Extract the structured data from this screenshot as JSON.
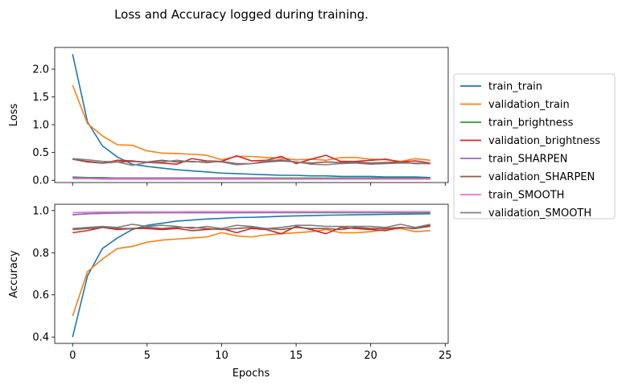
{
  "chart_data": {
    "type": "line",
    "title": "Loss and Accuracy logged during training.",
    "xlabel": "Epochs",
    "x": [
      0,
      1,
      2,
      3,
      4,
      5,
      6,
      7,
      8,
      9,
      10,
      11,
      12,
      13,
      14,
      15,
      16,
      17,
      18,
      19,
      20,
      21,
      22,
      23,
      24
    ],
    "xlim": [
      -1.2,
      25.2
    ],
    "xticks": [
      0,
      5,
      10,
      15,
      20,
      25
    ],
    "legend_position": "outside-right",
    "subplots": [
      {
        "id": "loss",
        "ylabel": "Loss",
        "ylim": [
          -0.04,
          2.39
        ],
        "yticks": [
          0.0,
          0.5,
          1.0,
          1.5,
          2.0
        ],
        "ytick_labels": [
          "0.0",
          "0.5",
          "1.0",
          "1.5",
          "2.0"
        ],
        "series": [
          {
            "name": "train_train",
            "color": "#1f77b4",
            "values": [
              2.27,
              1.05,
              0.62,
              0.42,
              0.29,
              0.25,
              0.22,
              0.19,
              0.17,
              0.15,
              0.13,
              0.12,
              0.11,
              0.1,
              0.09,
              0.09,
              0.08,
              0.08,
              0.07,
              0.07,
              0.07,
              0.06,
              0.06,
              0.06,
              0.05
            ]
          },
          {
            "name": "validation_train",
            "color": "#ff7f0e",
            "values": [
              1.71,
              1.02,
              0.8,
              0.64,
              0.63,
              0.53,
              0.49,
              0.48,
              0.47,
              0.45,
              0.37,
              0.43,
              0.43,
              0.41,
              0.4,
              0.37,
              0.38,
              0.36,
              0.41,
              0.41,
              0.38,
              0.37,
              0.34,
              0.39,
              0.36
            ]
          },
          {
            "name": "train_brightness",
            "color": "#2ca02c",
            "values": [
              0.06,
              0.05,
              0.05,
              0.04,
              0.04,
              0.04,
              0.04,
              0.04,
              0.04,
              0.04,
              0.04,
              0.04,
              0.04,
              0.04,
              0.04,
              0.04,
              0.04,
              0.04,
              0.04,
              0.04,
              0.04,
              0.04,
              0.04,
              0.04,
              0.04
            ]
          },
          {
            "name": "validation_brightness",
            "color": "#d62728",
            "values": [
              0.38,
              0.34,
              0.31,
              0.36,
              0.35,
              0.32,
              0.31,
              0.29,
              0.39,
              0.35,
              0.34,
              0.44,
              0.35,
              0.36,
              0.43,
              0.3,
              0.38,
              0.45,
              0.34,
              0.34,
              0.36,
              0.38,
              0.33,
              0.35,
              0.31
            ]
          },
          {
            "name": "train_SHARPEN",
            "color": "#9467bd",
            "values": [
              0.05,
              0.04,
              0.04,
              0.04,
              0.04,
              0.04,
              0.04,
              0.04,
              0.04,
              0.04,
              0.04,
              0.04,
              0.04,
              0.04,
              0.03,
              0.03,
              0.03,
              0.03,
              0.03,
              0.03,
              0.03,
              0.03,
              0.03,
              0.03,
              0.03
            ]
          },
          {
            "name": "validation_SHARPEN",
            "color": "#8c564b",
            "values": [
              0.38,
              0.33,
              0.31,
              0.33,
              0.34,
              0.33,
              0.36,
              0.33,
              0.34,
              0.32,
              0.34,
              0.3,
              0.3,
              0.33,
              0.35,
              0.33,
              0.31,
              0.33,
              0.32,
              0.33,
              0.31,
              0.32,
              0.33,
              0.3,
              0.3
            ]
          },
          {
            "name": "train_SMOOTH",
            "color": "#e377c2",
            "values": [
              0.03,
              0.03,
              0.02,
              0.02,
              0.02,
              0.02,
              0.02,
              0.02,
              0.02,
              0.02,
              0.02,
              0.02,
              0.02,
              0.02,
              0.02,
              0.02,
              0.02,
              0.02,
              0.02,
              0.02,
              0.02,
              0.02,
              0.02,
              0.02,
              0.02
            ]
          },
          {
            "name": "validation_SMOOTH",
            "color": "#7f7f7f",
            "values": [
              0.39,
              0.37,
              0.34,
              0.33,
              0.27,
              0.32,
              0.33,
              0.36,
              0.33,
              0.34,
              0.33,
              0.28,
              0.3,
              0.35,
              0.37,
              0.33,
              0.29,
              0.28,
              0.3,
              0.31,
              0.29,
              0.3,
              0.31,
              0.31,
              0.3
            ]
          }
        ]
      },
      {
        "id": "accuracy",
        "ylabel": "Accuracy",
        "ylim": [
          0.37,
          1.03
        ],
        "yticks": [
          0.4,
          0.6,
          0.8,
          1.0
        ],
        "ytick_labels": [
          "0.4",
          "0.6",
          "0.8",
          "1.0"
        ],
        "series": [
          {
            "name": "train_train",
            "color": "#1f77b4",
            "values": [
              0.4,
              0.69,
              0.82,
              0.87,
              0.91,
              0.93,
              0.94,
              0.95,
              0.955,
              0.96,
              0.963,
              0.967,
              0.968,
              0.97,
              0.973,
              0.975,
              0.976,
              0.978,
              0.979,
              0.98,
              0.981,
              0.982,
              0.983,
              0.984,
              0.985
            ]
          },
          {
            "name": "validation_train",
            "color": "#ff7f0e",
            "values": [
              0.5,
              0.71,
              0.77,
              0.82,
              0.83,
              0.85,
              0.86,
              0.865,
              0.87,
              0.875,
              0.895,
              0.88,
              0.875,
              0.885,
              0.89,
              0.895,
              0.9,
              0.91,
              0.895,
              0.895,
              0.9,
              0.91,
              0.915,
              0.9,
              0.905
            ]
          },
          {
            "name": "train_brightness",
            "color": "#2ca02c",
            "values": [
              0.98,
              0.985,
              0.987,
              0.988,
              0.989,
              0.989,
              0.99,
              0.99,
              0.99,
              0.99,
              0.99,
              0.99,
              0.99,
              0.99,
              0.99,
              0.99,
              0.99,
              0.99,
              0.99,
              0.99,
              0.99,
              0.99,
              0.99,
              0.99,
              0.99
            ]
          },
          {
            "name": "validation_brightness",
            "color": "#d62728",
            "values": [
              0.895,
              0.905,
              0.92,
              0.91,
              0.915,
              0.915,
              0.91,
              0.915,
              0.905,
              0.91,
              0.915,
              0.895,
              0.915,
              0.91,
              0.89,
              0.925,
              0.91,
              0.89,
              0.92,
              0.915,
              0.91,
              0.905,
              0.92,
              0.915,
              0.93
            ]
          },
          {
            "name": "train_SHARPEN",
            "color": "#9467bd",
            "values": [
              0.98,
              0.985,
              0.987,
              0.988,
              0.989,
              0.99,
              0.99,
              0.99,
              0.99,
              0.99,
              0.99,
              0.99,
              0.991,
              0.991,
              0.991,
              0.991,
              0.992,
              0.992,
              0.992,
              0.992,
              0.992,
              0.992,
              0.992,
              0.993,
              0.993
            ]
          },
          {
            "name": "validation_SHARPEN",
            "color": "#8c564b",
            "values": [
              0.91,
              0.915,
              0.92,
              0.915,
              0.915,
              0.92,
              0.915,
              0.92,
              0.92,
              0.915,
              0.91,
              0.915,
              0.92,
              0.915,
              0.91,
              0.92,
              0.915,
              0.915,
              0.91,
              0.92,
              0.915,
              0.915,
              0.92,
              0.915,
              0.925
            ]
          },
          {
            "name": "train_SMOOTH",
            "color": "#e377c2",
            "values": [
              0.99,
              0.992,
              0.993,
              0.993,
              0.994,
              0.994,
              0.994,
              0.994,
              0.995,
              0.995,
              0.995,
              0.995,
              0.995,
              0.995,
              0.995,
              0.995,
              0.995,
              0.995,
              0.995,
              0.995,
              0.995,
              0.995,
              0.995,
              0.995,
              0.995
            ]
          },
          {
            "name": "validation_SMOOTH",
            "color": "#7f7f7f",
            "values": [
              0.915,
              0.92,
              0.925,
              0.92,
              0.935,
              0.925,
              0.93,
              0.925,
              0.915,
              0.925,
              0.915,
              0.93,
              0.925,
              0.915,
              0.92,
              0.93,
              0.93,
              0.925,
              0.925,
              0.925,
              0.925,
              0.92,
              0.935,
              0.92,
              0.935
            ]
          }
        ]
      }
    ]
  }
}
